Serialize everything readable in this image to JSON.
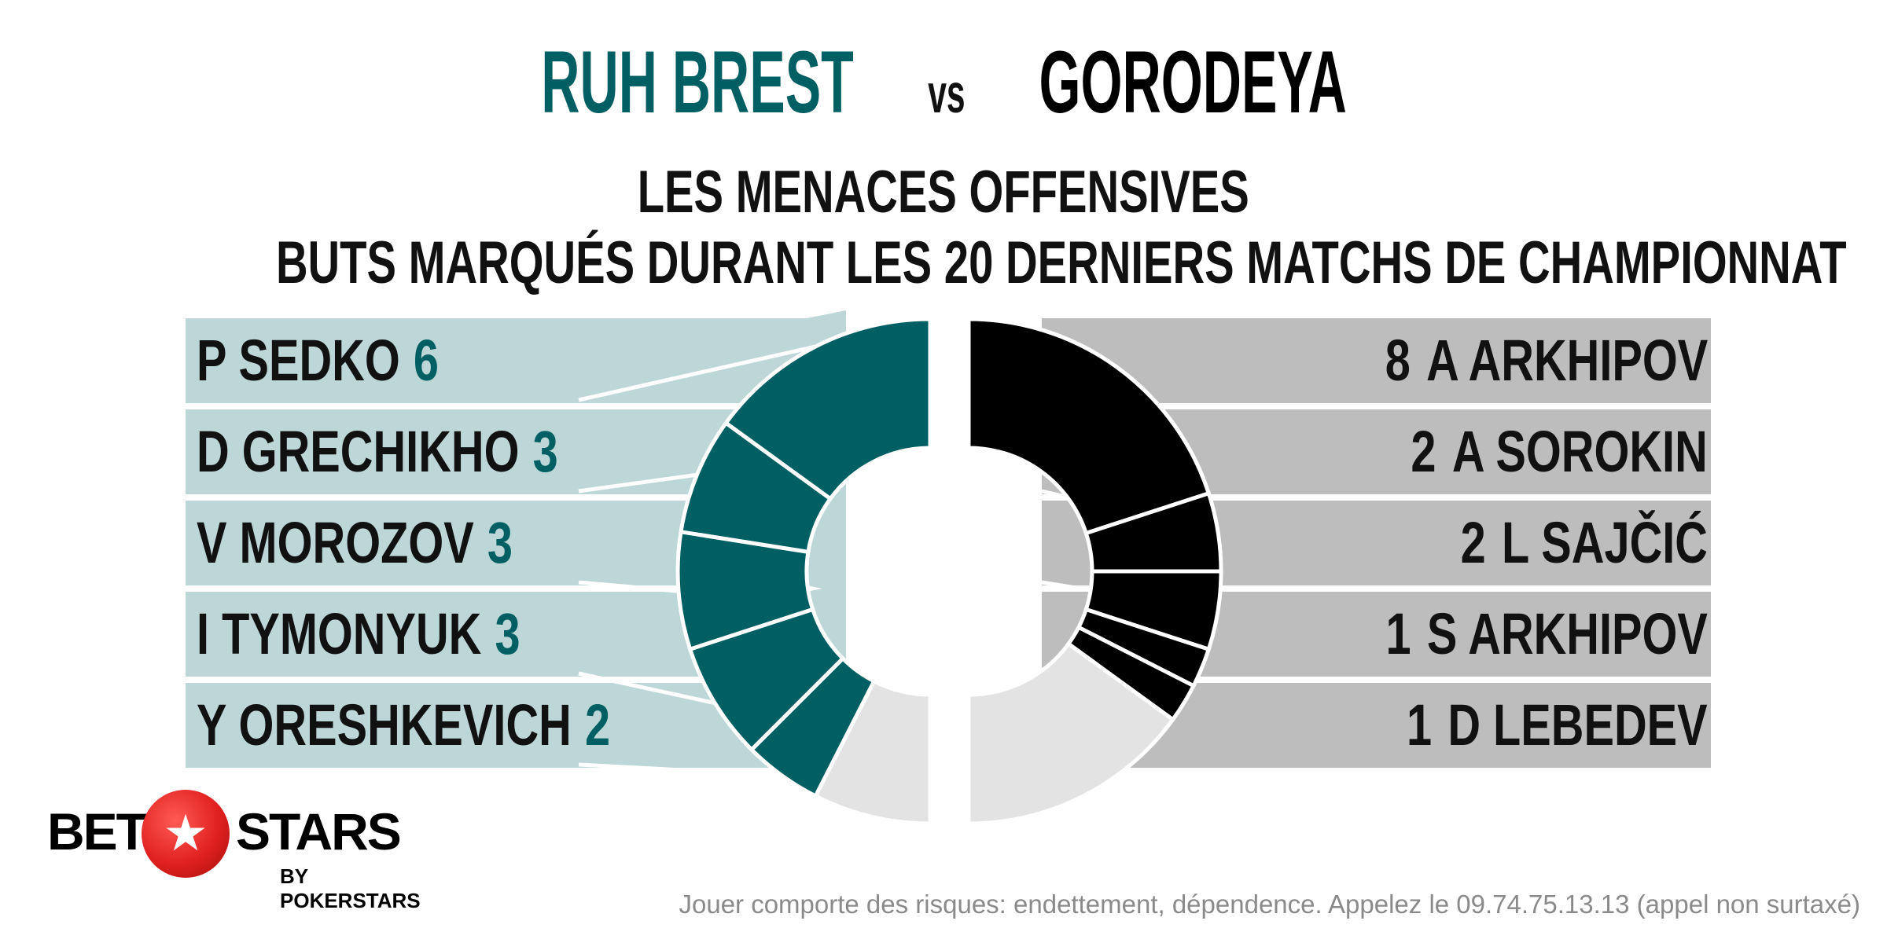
{
  "header": {
    "home_team": "RUH BREST",
    "vs": "vs",
    "away_team": "GORODEYA",
    "subtitle_line1": "LES MENACES OFFENSIVES",
    "subtitle_line2": "BUTS MARQUÉS DURANT LES 20 DERNIERS MATCHS DE CHAMPIONNAT"
  },
  "colors": {
    "home_accent": "#005f63",
    "home_band": "#bdd6d8",
    "away_accent": "#000000",
    "away_band": "#bdbdbd",
    "remainder": "#e3e3e3"
  },
  "chart_data": [
    {
      "type": "pie",
      "variant": "half-donut",
      "team": "RUH BREST",
      "side": "left",
      "categories": [
        "P SEDKO",
        "D GRECHIKHO",
        "V MOROZOV",
        "I TYMONYUK",
        "Y ORESHKEVICH"
      ],
      "values": [
        6,
        3,
        3,
        3,
        2
      ],
      "remainder_segment": true
    },
    {
      "type": "pie",
      "variant": "half-donut",
      "team": "GORODEYA",
      "side": "right",
      "categories": [
        "A ARKHIPOV",
        "A SOROKIN",
        "L SAJČIĆ",
        "S ARKHIPOV",
        "D LEBEDEV"
      ],
      "values": [
        8,
        2,
        2,
        1,
        1
      ],
      "remainder_segment": true
    }
  ],
  "branding": {
    "logo_left": "BET",
    "logo_right": "STARS",
    "logo_star": "★",
    "logo_sub": "BY POKERSTARS"
  },
  "footer": {
    "disclaimer": "Jouer comporte des risques: endettement, dépendence. Appelez le 09.74.75.13.13 (appel non surtaxé)"
  }
}
